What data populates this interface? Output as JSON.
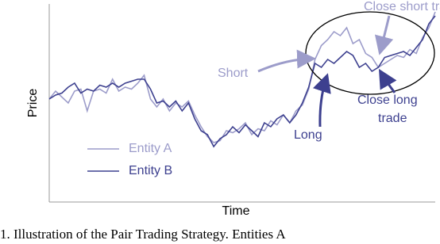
{
  "chart_data": {
    "type": "line",
    "x_label": "Time",
    "y_label": "Price",
    "x": [
      0,
      1,
      2,
      3,
      4,
      5,
      6,
      7,
      8,
      9,
      10,
      11,
      12,
      13,
      14,
      15,
      16,
      17,
      18,
      19,
      20,
      21,
      22,
      23,
      24,
      25,
      26,
      27,
      28,
      29,
      30,
      31,
      32,
      33,
      34,
      35,
      36,
      37,
      38,
      39,
      40,
      41,
      42,
      43,
      44,
      45,
      46,
      47,
      48,
      49,
      50,
      51,
      52,
      53,
      54,
      55,
      56,
      57,
      58,
      59,
      60,
      61
    ],
    "xlim": [
      0,
      61
    ],
    "ylim": [
      0,
      100
    ],
    "series": [
      {
        "name": "Entity A",
        "color": "#9c9cca",
        "values": [
          52,
          56,
          53,
          50,
          56,
          57,
          46,
          56,
          57,
          55,
          62,
          56,
          58,
          57,
          60,
          64,
          52,
          48,
          52,
          46,
          50,
          48,
          51,
          44,
          38,
          33,
          30,
          31,
          36,
          35,
          37,
          40,
          34,
          37,
          36,
          41,
          39,
          44,
          40,
          46,
          49,
          57,
          72,
          79,
          82,
          86,
          84,
          88,
          80,
          82,
          75,
          73,
          68,
          70,
          72,
          74,
          73,
          77,
          75,
          83,
          88,
          96
        ]
      },
      {
        "name": "Entity B",
        "color": "#3d408f",
        "values": [
          52,
          54,
          55,
          58,
          60,
          55,
          57,
          56,
          59,
          58,
          60,
          58,
          60,
          61,
          62,
          62,
          57,
          50,
          51,
          48,
          51,
          46,
          50,
          42,
          36,
          34,
          28,
          32,
          34,
          38,
          35,
          39,
          36,
          33,
          40,
          38,
          42,
          44,
          40,
          44,
          50,
          58,
          70,
          68,
          72,
          70,
          73,
          76,
          74,
          68,
          70,
          66,
          68,
          73,
          74,
          75,
          76,
          74,
          78,
          82,
          90,
          94
        ]
      }
    ],
    "annotations": [
      "Close short trade",
      "Short",
      "Close long",
      "trade",
      "Long"
    ],
    "caption": "1.  Illustration of the Pair Trading Strategy. Entities A"
  }
}
